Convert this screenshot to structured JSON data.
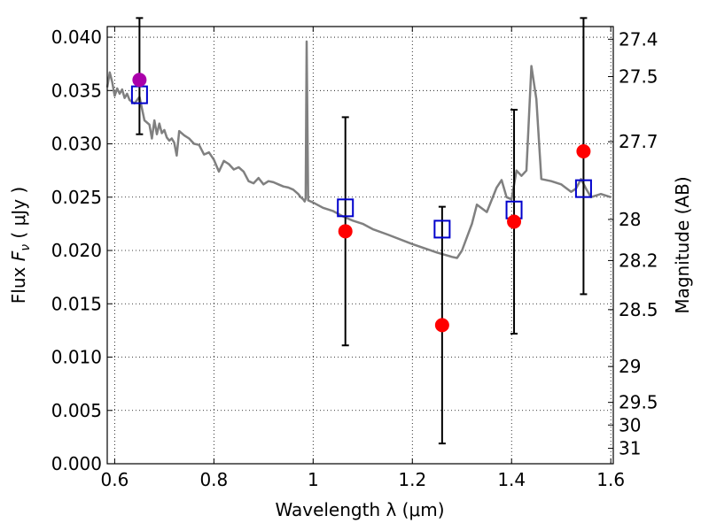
{
  "chart_data": {
    "type": "scatter",
    "xlabel": "Wavelength  λ (μm)",
    "ylabel_parts": {
      "prefix": "Flux  ",
      "symbol": "F",
      "subscript": "ν",
      "suffix": "  ( μJy )"
    },
    "y2label": "Magnitude (AB)",
    "xlim": [
      0.585,
      1.605
    ],
    "ylim": [
      0.0,
      0.041
    ],
    "grid": true,
    "xticks": [
      {
        "v": 0.6,
        "label": "0.6"
      },
      {
        "v": 0.8,
        "label": "0.8"
      },
      {
        "v": 1.0,
        "label": "1"
      },
      {
        "v": 1.2,
        "label": "1.2"
      },
      {
        "v": 1.4,
        "label": "1.4"
      },
      {
        "v": 1.6,
        "label": "1.6"
      }
    ],
    "yticks": [
      {
        "v": 0.0,
        "label": "0.000"
      },
      {
        "v": 0.005,
        "label": "0.005"
      },
      {
        "v": 0.01,
        "label": "0.010"
      },
      {
        "v": 0.015,
        "label": "0.015"
      },
      {
        "v": 0.02,
        "label": "0.020"
      },
      {
        "v": 0.025,
        "label": "0.025"
      },
      {
        "v": 0.03,
        "label": "0.030"
      },
      {
        "v": 0.035,
        "label": "0.035"
      },
      {
        "v": 0.04,
        "label": "0.040"
      }
    ],
    "mag_ticks": [
      {
        "mag": 27.4,
        "label": "27.4"
      },
      {
        "mag": 27.5,
        "label": "27.5"
      },
      {
        "mag": 27.7,
        "label": "27.7"
      },
      {
        "mag": 28.0,
        "label": "28"
      },
      {
        "mag": 28.2,
        "label": "28.2"
      },
      {
        "mag": 28.5,
        "label": "28.5"
      },
      {
        "mag": 29.0,
        "label": "29"
      },
      {
        "mag": 29.5,
        "label": "29.5"
      },
      {
        "mag": 30.0,
        "label": "30"
      },
      {
        "mag": 31.0,
        "label": "31"
      }
    ],
    "model_sed": {
      "color": "#808080",
      "x": [
        0.585,
        0.59,
        0.595,
        0.6,
        0.605,
        0.61,
        0.615,
        0.62,
        0.625,
        0.63,
        0.64,
        0.65,
        0.66,
        0.67,
        0.675,
        0.68,
        0.685,
        0.69,
        0.695,
        0.7,
        0.705,
        0.71,
        0.715,
        0.72,
        0.725,
        0.73,
        0.74,
        0.75,
        0.76,
        0.77,
        0.78,
        0.79,
        0.8,
        0.81,
        0.82,
        0.83,
        0.84,
        0.85,
        0.86,
        0.87,
        0.88,
        0.89,
        0.9,
        0.91,
        0.92,
        0.93,
        0.94,
        0.95,
        0.96,
        0.97,
        0.975,
        0.98,
        0.983,
        0.985,
        0.987,
        0.99,
        1.0,
        1.02,
        1.04,
        1.06,
        1.08,
        1.1,
        1.12,
        1.15,
        1.2,
        1.25,
        1.28,
        1.29,
        1.3,
        1.32,
        1.33,
        1.35,
        1.37,
        1.38,
        1.39,
        1.4,
        1.41,
        1.42,
        1.43,
        1.44,
        1.45,
        1.46,
        1.48,
        1.5,
        1.52,
        1.53,
        1.54,
        1.55,
        1.56,
        1.58,
        1.6
      ],
      "y": [
        0.0353,
        0.0367,
        0.0358,
        0.0345,
        0.0352,
        0.0347,
        0.0351,
        0.0343,
        0.0347,
        0.0341,
        0.0338,
        0.0344,
        0.0322,
        0.0318,
        0.0305,
        0.0322,
        0.0309,
        0.0319,
        0.031,
        0.0313,
        0.0306,
        0.0303,
        0.0305,
        0.0301,
        0.0289,
        0.0312,
        0.0308,
        0.0305,
        0.03,
        0.0299,
        0.029,
        0.0292,
        0.0285,
        0.0274,
        0.0284,
        0.0281,
        0.0276,
        0.0278,
        0.0274,
        0.0265,
        0.0263,
        0.0268,
        0.0262,
        0.0265,
        0.0264,
        0.0262,
        0.026,
        0.0259,
        0.0257,
        0.0253,
        0.025,
        0.0248,
        0.0246,
        0.0249,
        0.0396,
        0.0247,
        0.0245,
        0.024,
        0.0237,
        0.0232,
        0.0228,
        0.0225,
        0.022,
        0.0215,
        0.0206,
        0.0198,
        0.0194,
        0.0193,
        0.02,
        0.0225,
        0.0243,
        0.0236,
        0.0259,
        0.0266,
        0.025,
        0.0248,
        0.0275,
        0.027,
        0.0275,
        0.0373,
        0.0342,
        0.0267,
        0.0265,
        0.0262,
        0.0255,
        0.0258,
        0.0267,
        0.0258,
        0.025,
        0.0253,
        0.025
      ]
    },
    "model_boxes": {
      "color": "#0000cc",
      "x": [
        0.65,
        1.065,
        1.26,
        1.405,
        1.545
      ],
      "y": [
        0.0346,
        0.024,
        0.022,
        0.0238,
        0.0258
      ]
    },
    "observed": {
      "color": "#ff0000",
      "x": [
        1.065,
        1.26,
        1.405,
        1.545
      ],
      "y": [
        0.0218,
        0.013,
        0.0227,
        0.0293
      ],
      "yerr_low": [
        0.0111,
        0.0019,
        0.0122,
        0.0159
      ],
      "yerr_high": [
        0.0325,
        0.0241,
        0.0332,
        0.0418
      ]
    },
    "observed_optical": {
      "color": "#aa00aa",
      "x": [
        0.65
      ],
      "y": [
        0.036
      ],
      "yerr_low": [
        0.0309
      ],
      "yerr_high": [
        0.0418
      ]
    }
  }
}
